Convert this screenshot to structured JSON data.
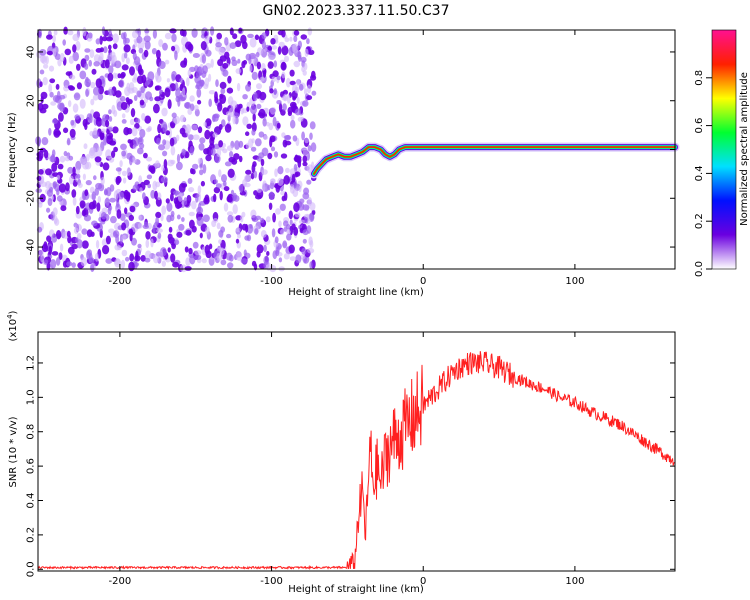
{
  "title": "GN02.2023.337.11.50.C37",
  "chart_data": [
    {
      "type": "heatmap",
      "title": "",
      "xlabel": "Height of straight line (km)",
      "ylabel": "Frequency (Hz)",
      "xlim": [
        -254,
        166
      ],
      "ylim": [
        -49,
        49
      ],
      "xticks": [
        -200,
        -100,
        0,
        100
      ],
      "yticks": [
        -40,
        -20,
        0,
        20,
        40
      ],
      "colorbar": {
        "label": "Normalized spectral amplitude",
        "range": [
          0.0,
          1.0
        ],
        "ticks": [
          "0.0",
          "0.2",
          "0.4",
          "0.6",
          "0.8"
        ],
        "colormap": [
          "#ffffff",
          "#6a00e0",
          "#0010ff",
          "#00e0ff",
          "#00ff30",
          "#ffff00",
          "#ff2000",
          "#ff1090"
        ]
      },
      "noise_region_x": [
        -254,
        -72
      ],
      "signal_track": {
        "x": [
          -72,
          -70,
          -67,
          -64,
          -60,
          -56,
          -52,
          -48,
          -44,
          -40,
          -36,
          -32,
          -28,
          -25,
          -22,
          -19,
          -16,
          -12,
          -8,
          0,
          20,
          60,
          100,
          140,
          166
        ],
        "freq": [
          -10,
          -8,
          -6,
          -4,
          -3,
          -2,
          -3,
          -3,
          -2,
          -1,
          1,
          1,
          0,
          -2,
          -3,
          -2,
          0,
          1,
          1,
          1,
          1,
          1,
          1,
          1,
          1
        ]
      }
    },
    {
      "type": "line",
      "title": "",
      "xlabel": "Height of straight line (km)",
      "ylabel": "SNR (10 * v/v)",
      "y_multiplier": "(x10^4)",
      "xlim": [
        -254,
        166
      ],
      "ylim": [
        -0.01,
        1.38
      ],
      "xticks": [
        -200,
        -100,
        0,
        100
      ],
      "yticks": [
        "0.0",
        "0.2",
        "0.4",
        "0.6",
        "0.8",
        "1.0",
        "1.2"
      ],
      "series": [
        {
          "color": "#ff2020",
          "x": [
            -254,
            -200,
            -150,
            -100,
            -60,
            -50,
            -45,
            -43,
            -40,
            -38,
            -35,
            -33,
            -30,
            -28,
            -25,
            -20,
            -15,
            -10,
            -5,
            0,
            5,
            10,
            15,
            20,
            25,
            30,
            35,
            40,
            50,
            60,
            70,
            80,
            90,
            100,
            110,
            120,
            130,
            140,
            150,
            160,
            166
          ],
          "y": [
            0.01,
            0.01,
            0.01,
            0.01,
            0.01,
            0.01,
            0.05,
            0.3,
            0.45,
            0.2,
            0.7,
            0.5,
            0.6,
            0.5,
            0.65,
            0.75,
            0.78,
            0.85,
            0.9,
            0.95,
            1.0,
            1.05,
            1.1,
            1.15,
            1.18,
            1.2,
            1.2,
            1.2,
            1.17,
            1.12,
            1.08,
            1.05,
            1.0,
            0.97,
            0.92,
            0.88,
            0.84,
            0.78,
            0.72,
            0.66,
            0.63
          ]
        }
      ]
    }
  ]
}
